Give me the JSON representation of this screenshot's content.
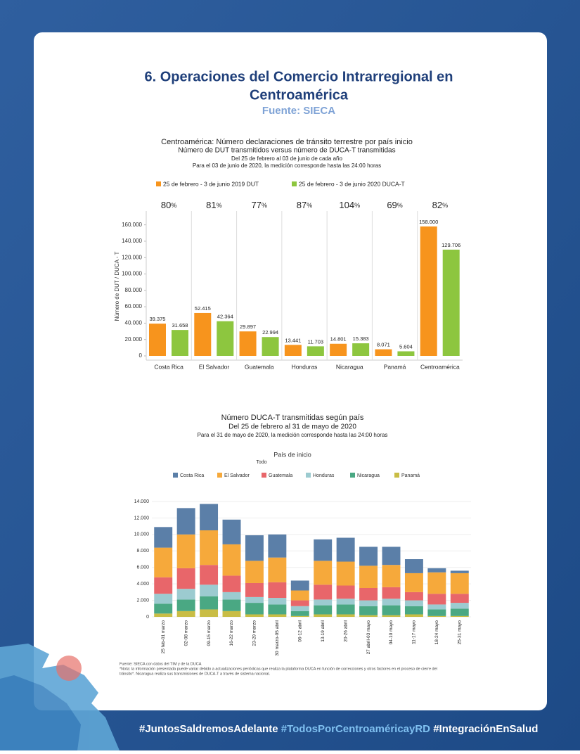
{
  "header": {
    "title_lines": [
      "6. Operaciones del Comercio Intrarregional en",
      "Centroamérica"
    ],
    "source": "Fuente: SIECA"
  },
  "chart_data": [
    {
      "type": "bar",
      "title": "Centroamérica: Número declaraciones de tránsito terrestre por país inicio",
      "subtitles": [
        "Número de DUT transmitidos versus número de DUCA-T transmitidas",
        "Del 25 de febrero al 03 de junio de cada año",
        "Para el 03 de junio de 2020, la medición corresponde hasta las 24:00 horas"
      ],
      "y_label": "Número de DUT / DUCA - T",
      "categories": [
        "Costa Rica",
        "El Salvador",
        "Guatemala",
        "Honduras",
        "Nicaragua",
        "Panamá",
        "Centroamérica"
      ],
      "series": [
        {
          "name": "25 de febrero - 3 de junio 2019 DUT",
          "color": "#f7941d",
          "values": [
            39375,
            52415,
            29897,
            13441,
            14801,
            8071,
            158000
          ],
          "value_labels": [
            "39.375",
            "52.415",
            "29.897",
            "13.441",
            "14.801",
            "8.071",
            "158.000"
          ]
        },
        {
          "name": "25 de febrero - 3 de junio 2020 DUCA-T",
          "color": "#8dc63f",
          "values": [
            31658,
            42364,
            22994,
            11703,
            15383,
            5604,
            129706
          ],
          "value_labels": [
            "31.658",
            "42.364",
            "22.994",
            "11.703",
            "15.383",
            "5.604",
            "129.706"
          ]
        }
      ],
      "ratios": [
        80,
        81,
        77,
        87,
        104,
        69,
        82
      ],
      "ratio_unit": "%",
      "ylim": [
        0,
        170000
      ],
      "yticks": [
        0,
        {
          "value": 20000,
          "label": "20.000"
        },
        {
          "value": 40000,
          "label": "40.000"
        },
        {
          "value": 60000,
          "label": "60.000"
        },
        {
          "value": 80000,
          "label": "80.000"
        },
        {
          "value": 100000,
          "label": "100.000"
        },
        {
          "value": 120000,
          "label": "120.000"
        },
        {
          "value": 140000,
          "label": "140.000"
        },
        {
          "value": 160000,
          "label": "160.000"
        }
      ]
    },
    {
      "type": "stacked_bar",
      "title": "Número DUCA-T transmitidas según país",
      "subtitles": [
        "Del 25 de febrero al 31 de mayo de 2020",
        "Para el 31 de mayo de 2020, la medición corresponde hasta las 24:00 horas"
      ],
      "legend_title": "País de inicio",
      "legend_filter": "Todo",
      "categories": [
        "25 feb-01 marzo",
        "02-08 marzo",
        "09-15 marzo",
        "16-22 marzo",
        "23-29 marzo",
        "30 marzo-05 abril",
        "06-12 abril",
        "13-19 abril",
        "20-26 abril",
        "27 abril-03 mayo",
        "04-10 mayo",
        "11-17 mayo",
        "18-24 mayo",
        "25-31 mayo"
      ],
      "series": [
        {
          "name": "Costa Rica",
          "color": "#5b7fa8",
          "values": [
            2500,
            3200,
            3200,
            3000,
            3100,
            2800,
            1200,
            2600,
            2900,
            2300,
            2200,
            1700,
            500,
            300
          ]
        },
        {
          "name": "El Salvador",
          "color": "#f6a93b",
          "values": [
            3600,
            4100,
            4200,
            3800,
            2700,
            3000,
            1200,
            2900,
            2900,
            2700,
            2700,
            2300,
            2600,
            2500
          ]
        },
        {
          "name": "Guatemala",
          "color": "#e8666a",
          "values": [
            2000,
            2500,
            2400,
            2000,
            1700,
            1900,
            700,
            1800,
            1600,
            1500,
            1400,
            1000,
            1300,
            1100
          ]
        },
        {
          "name": "Honduras",
          "color": "#9ccbd0",
          "values": [
            1200,
            1300,
            1400,
            900,
            700,
            800,
            600,
            700,
            700,
            700,
            800,
            700,
            600,
            700
          ]
        },
        {
          "name": "Nicaragua",
          "color": "#4aa883",
          "values": [
            1200,
            1400,
            1600,
            1400,
            1400,
            1200,
            600,
            1100,
            1200,
            1100,
            1200,
            1000,
            800,
            900
          ]
        },
        {
          "name": "Panamá",
          "color": "#c9bd45",
          "values": [
            400,
            700,
            900,
            700,
            300,
            300,
            100,
            300,
            300,
            200,
            200,
            300,
            100,
            100
          ]
        }
      ],
      "ylim": [
        0,
        14000
      ],
      "yticks": [
        0,
        {
          "value": 2000,
          "label": "2.000"
        },
        {
          "value": 4000,
          "label": "4.000"
        },
        {
          "value": 6000,
          "label": "6.000"
        },
        {
          "value": 8000,
          "label": "8.000"
        },
        {
          "value": 10000,
          "label": "10.000"
        },
        {
          "value": 12000,
          "label": "12.000"
        },
        {
          "value": 14000,
          "label": "14.000"
        }
      ]
    }
  ],
  "footnotes": [
    "Fuente: SIECA con datos del TIM y de la DUCA",
    "*Nota: la información presentada puede variar debido a actualizaciones periódicas que realiza la plataforma DUCA en función de correcciones y otros factores en el proceso de cierre del",
    "tránsito*. Nicaragua realiza sus transmisiones de DUCA-T a través de sistema nacional."
  ],
  "hashtags": [
    "#JuntosSaldremosAdelante",
    "#TodosPorCentroaméricayRD",
    "#IntegraciónEnSalud"
  ]
}
